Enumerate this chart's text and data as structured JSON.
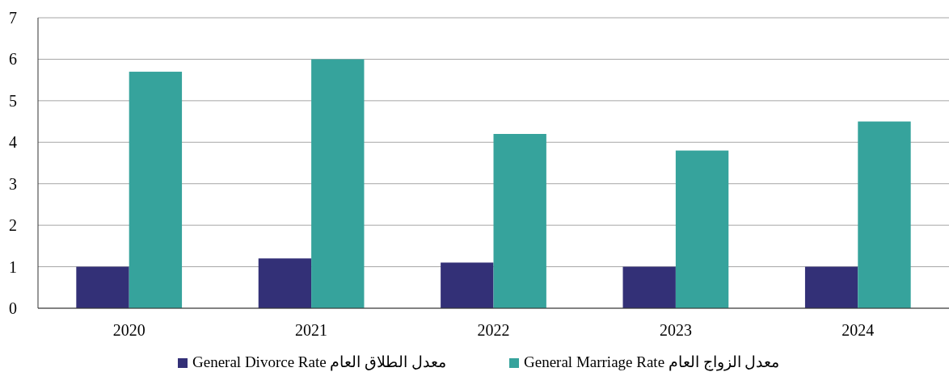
{
  "chart_data": {
    "type": "bar",
    "categories": [
      "2020",
      "2021",
      "2022",
      "2023",
      "2024"
    ],
    "series": [
      {
        "name": "General Divorce Rate معدل الطلاق العام",
        "color": "#333077",
        "values": [
          1.0,
          1.2,
          1.1,
          1.0,
          1.0
        ]
      },
      {
        "name": "General Marriage Rate معدل الزواج العام",
        "color": "#36a39c",
        "values": [
          5.7,
          6.0,
          4.2,
          3.8,
          4.5
        ]
      }
    ],
    "ylim": [
      0,
      7
    ],
    "yticks": [
      0,
      1,
      2,
      3,
      4,
      5,
      6,
      7
    ],
    "grid": "y",
    "legend": "bottom"
  }
}
